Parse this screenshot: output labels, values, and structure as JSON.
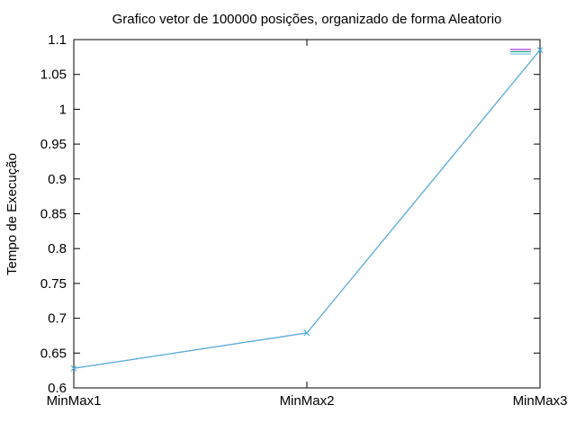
{
  "chart_data": {
    "type": "line",
    "title": "Grafico vetor de 100000 posições, organizado de forma Aleatorio",
    "xlabel": "",
    "ylabel": "Tempo de Execução",
    "categories": [
      "MinMax1",
      "MinMax2",
      "MinMax3"
    ],
    "ylim": [
      0.6,
      1.1
    ],
    "yticks": [
      "0.6",
      "0.65",
      "0.7",
      "0.75",
      "0.8",
      "0.85",
      "0.9",
      "0.95",
      "1",
      "1.05",
      "1.1"
    ],
    "grid": false,
    "legend_placement": "top-right",
    "series": [
      {
        "values": [
          0.628,
          0.679,
          1.085
        ],
        "color": "#9400d3",
        "marker": "none"
      },
      {
        "values": [
          0.628,
          0.679,
          1.085
        ],
        "color": "#009e73",
        "marker": "x"
      },
      {
        "values": [
          0.628,
          0.679,
          1.085
        ],
        "color": "#56b4e9",
        "marker": "x"
      }
    ],
    "legend_colors": [
      "#9400d3",
      "#009e73",
      "#56b4e9"
    ]
  }
}
